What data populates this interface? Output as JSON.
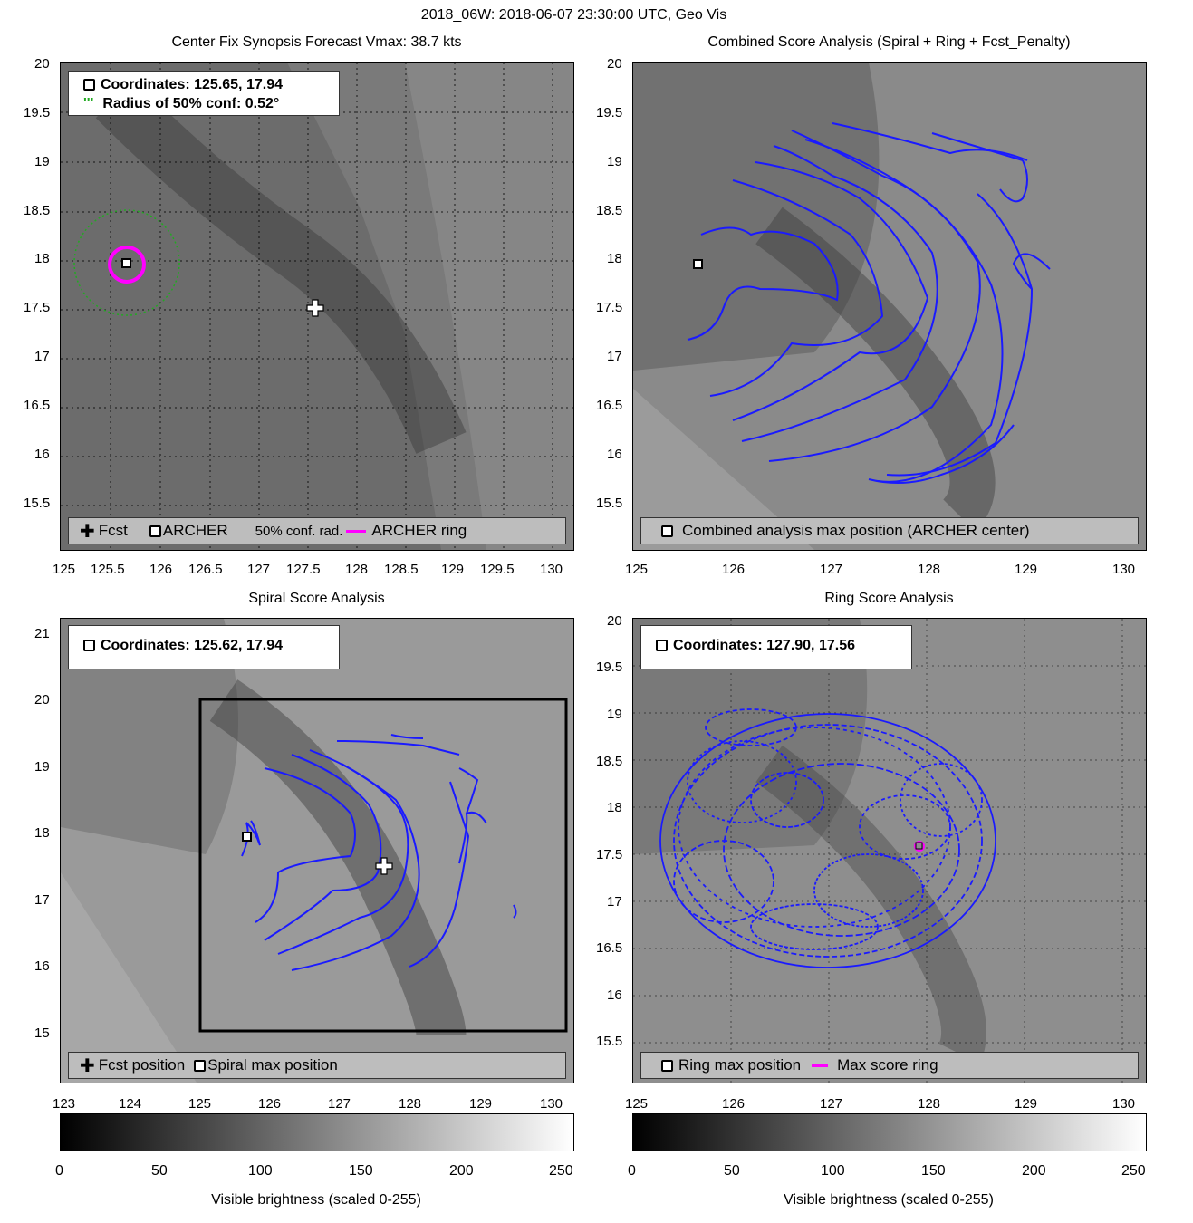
{
  "figure_title": "2018_06W: 2018-06-07 23:30:00 UTC, Geo Vis",
  "panels": {
    "synopsis": {
      "title": "Center Fix Synopsis      Forecast Vmax: 38.7 kts",
      "coord_text": "Coordinates: 125.65, 17.94",
      "radius_text": "Radius of 50% conf: 0.52°",
      "legend": {
        "fcst": "Fcst",
        "archer": "ARCHER",
        "conf": "50% conf. rad.",
        "ring": "ARCHER ring"
      },
      "xticks": [
        "125",
        "125.5",
        "126",
        "126.5",
        "127",
        "127.5",
        "128",
        "128.5",
        "129",
        "129.5",
        "130"
      ],
      "yticks": [
        "20",
        "19.5",
        "19",
        "18.5",
        "18",
        "17.5",
        "17",
        "16.5",
        "16",
        "15.5"
      ]
    },
    "combined": {
      "title": "Combined Score Analysis (Spiral + Ring + Fcst_Penalty)",
      "legend": {
        "max": "Combined analysis max position (ARCHER center)"
      },
      "xticks": [
        "125",
        "126",
        "127",
        "128",
        "129",
        "130"
      ],
      "yticks": [
        "20",
        "19.5",
        "19",
        "18.5",
        "18",
        "17.5",
        "17",
        "16.5",
        "16",
        "15.5"
      ]
    },
    "spiral": {
      "title": "Spiral Score Analysis",
      "coord_text": "Coordinates: 125.62, 17.94",
      "legend": {
        "fcst": "Fcst position",
        "max": "Spiral max position"
      },
      "xticks": [
        "123",
        "124",
        "125",
        "126",
        "127",
        "128",
        "129",
        "130"
      ],
      "yticks": [
        "21",
        "20",
        "19",
        "18",
        "17",
        "16",
        "15"
      ]
    },
    "ring": {
      "title": "Ring Score Analysis",
      "coord_text": "Coordinates: 127.90, 17.56",
      "legend": {
        "max": "Ring max position",
        "ring": "Max score ring"
      },
      "xticks": [
        "125",
        "126",
        "127",
        "128",
        "129",
        "130"
      ],
      "yticks": [
        "20",
        "19.5",
        "19",
        "18.5",
        "18",
        "17.5",
        "17",
        "16.5",
        "16",
        "15.5"
      ]
    }
  },
  "colorbars": {
    "left": {
      "ticks": [
        "0",
        "50",
        "100",
        "150",
        "200",
        "250"
      ],
      "label": "Visible brightness (scaled 0-255)"
    },
    "right": {
      "ticks": [
        "0",
        "50",
        "100",
        "150",
        "200",
        "250"
      ],
      "label": "Visible brightness (scaled 0-255)"
    }
  },
  "colors": {
    "contour": "#1a1aff",
    "ring": "#ff00ff",
    "conf": "#22aa22"
  }
}
